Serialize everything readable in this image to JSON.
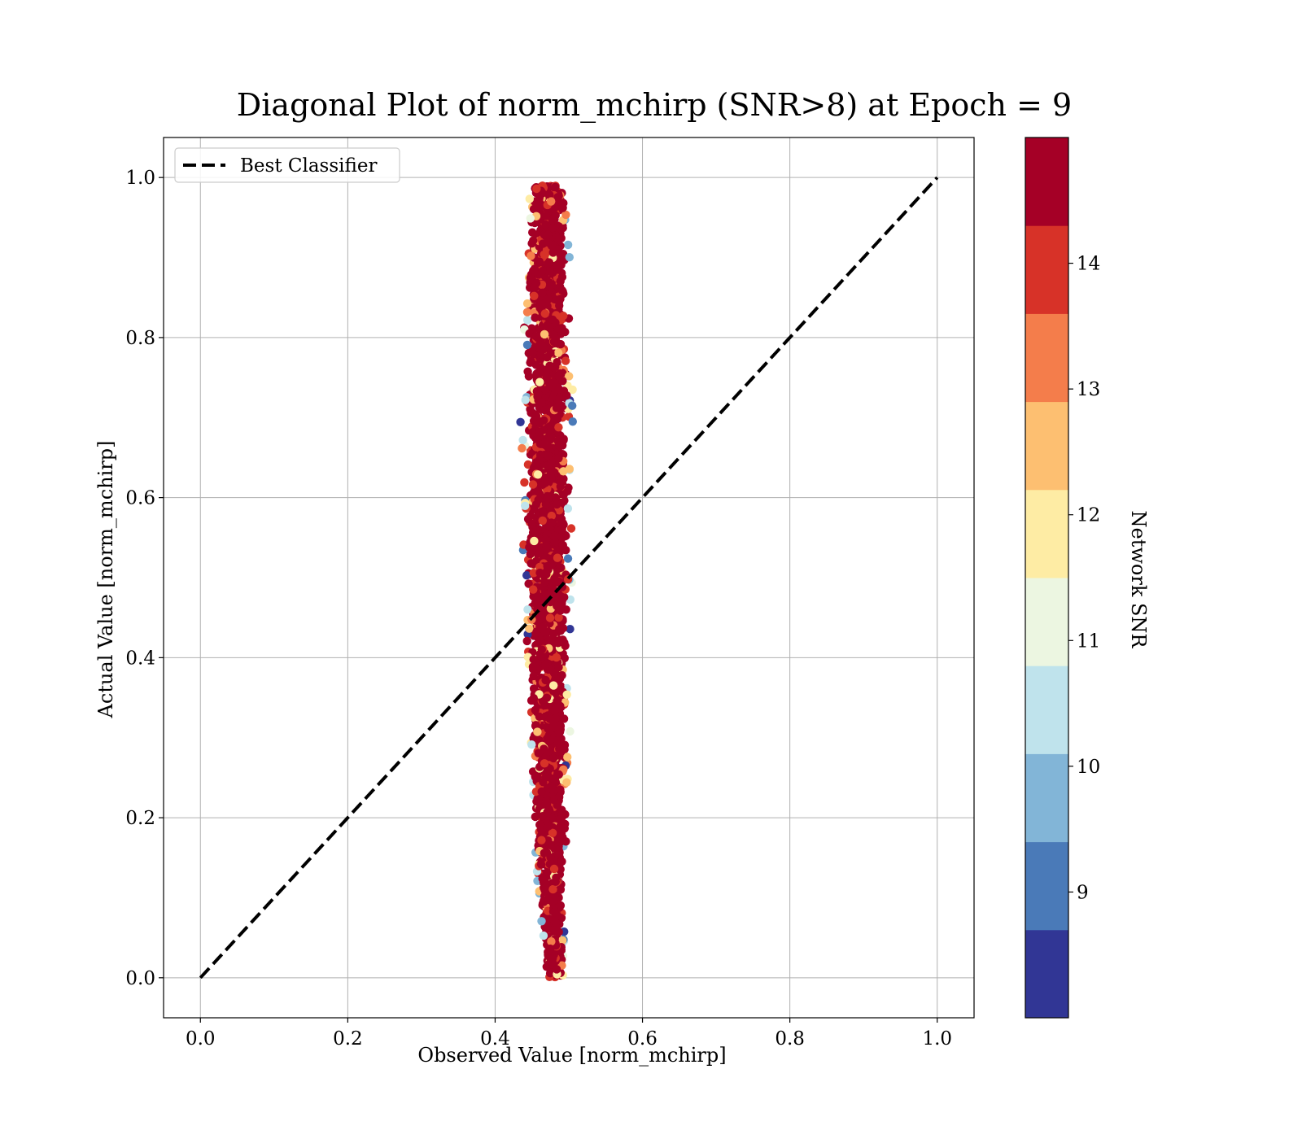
{
  "chart_data": {
    "type": "scatter",
    "title": "Diagonal Plot of norm_mchirp (SNR>8) at Epoch = 9",
    "xlabel": "Observed Value [norm_mchirp]",
    "ylabel": "Actual Value [norm_mchirp]",
    "xlim": [
      -0.05,
      1.05
    ],
    "ylim": [
      -0.05,
      1.05
    ],
    "xticks": [
      0.0,
      0.2,
      0.4,
      0.6,
      0.8,
      1.0
    ],
    "yticks": [
      0.0,
      0.2,
      0.4,
      0.6,
      0.8,
      1.0
    ],
    "xtick_labels": [
      "0.0",
      "0.2",
      "0.4",
      "0.6",
      "0.8",
      "1.0"
    ],
    "ytick_labels": [
      "0.0",
      "0.2",
      "0.4",
      "0.6",
      "0.8",
      "1.0"
    ],
    "grid": true,
    "legend": {
      "placement": "upper-left",
      "entries": [
        "Best Classifier"
      ]
    },
    "reference_line": {
      "name": "Best Classifier",
      "style": "dashed",
      "color": "#000000",
      "x": [
        0.0,
        1.0
      ],
      "y": [
        0.0,
        1.0
      ]
    },
    "scatter_band": {
      "description_values": "predictions concentrated near observed 0.44-0.50 for all actual values 0-1",
      "profile": [
        {
          "y": 0.0,
          "x_min": 0.47,
          "x_max": 0.495
        },
        {
          "y": 0.05,
          "x_min": 0.462,
          "x_max": 0.495
        },
        {
          "y": 0.1,
          "x_min": 0.455,
          "x_max": 0.497
        },
        {
          "y": 0.15,
          "x_min": 0.45,
          "x_max": 0.498
        },
        {
          "y": 0.2,
          "x_min": 0.445,
          "x_max": 0.502
        },
        {
          "y": 0.3,
          "x_min": 0.44,
          "x_max": 0.505
        },
        {
          "y": 0.4,
          "x_min": 0.437,
          "x_max": 0.508
        },
        {
          "y": 0.5,
          "x_min": 0.433,
          "x_max": 0.51
        },
        {
          "y": 0.6,
          "x_min": 0.432,
          "x_max": 0.51
        },
        {
          "y": 0.7,
          "x_min": 0.432,
          "x_max": 0.51
        },
        {
          "y": 0.8,
          "x_min": 0.433,
          "x_max": 0.508
        },
        {
          "y": 0.9,
          "x_min": 0.437,
          "x_max": 0.505
        },
        {
          "y": 0.95,
          "x_min": 0.44,
          "x_max": 0.503
        },
        {
          "y": 0.99,
          "x_min": 0.445,
          "x_max": 0.5
        }
      ]
    },
    "colorbar": {
      "label": "Network SNR",
      "min": 8.0,
      "max": 15.0,
      "ticks": [
        9,
        10,
        11,
        12,
        13,
        14
      ],
      "tick_labels": [
        "9",
        "10",
        "11",
        "12",
        "13",
        "14"
      ],
      "levels": [
        {
          "from": 8.0,
          "to": 8.7,
          "color": "#313695"
        },
        {
          "from": 8.7,
          "to": 9.4,
          "color": "#4a7ab8"
        },
        {
          "from": 9.4,
          "to": 10.1,
          "color": "#82b5d7"
        },
        {
          "from": 10.1,
          "to": 10.8,
          "color": "#bfe3ec"
        },
        {
          "from": 10.8,
          "to": 11.5,
          "color": "#ecf6e1"
        },
        {
          "from": 11.5,
          "to": 12.2,
          "color": "#feeca4"
        },
        {
          "from": 12.2,
          "to": 12.9,
          "color": "#fdbf71"
        },
        {
          "from": 12.9,
          "to": 13.6,
          "color": "#f47d4b"
        },
        {
          "from": 13.6,
          "to": 14.3,
          "color": "#d73228"
        },
        {
          "from": 14.3,
          "to": 15.0,
          "color": "#a50026"
        }
      ]
    }
  }
}
